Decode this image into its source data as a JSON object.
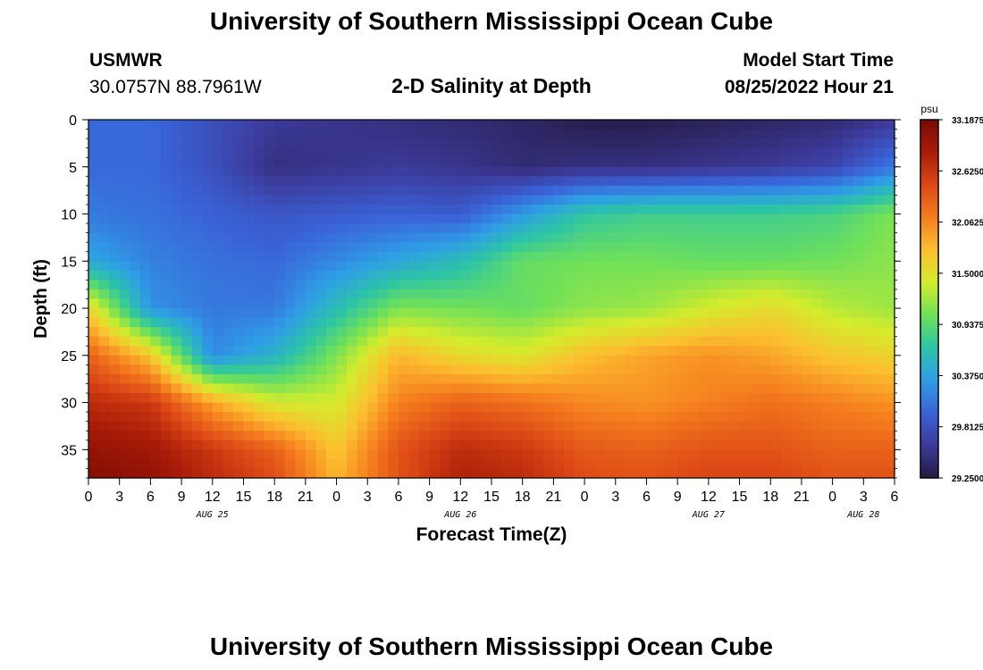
{
  "title": "University of Southern Mississippi Ocean Cube",
  "station": {
    "name": "USMWR",
    "coords": "30.0757N  88.7961W"
  },
  "subtitle": "2-D Salinity at Depth",
  "model_start": {
    "label": "Model Start Time",
    "value": "08/25/2022 Hour 21"
  },
  "chart_data": {
    "type": "heatmap",
    "title": "2-D Salinity at Depth",
    "xlabel": "Forecast Time(Z)",
    "ylabel": "Depth (ft)",
    "x_range_hours": [
      0,
      78
    ],
    "ylim": [
      0,
      38
    ],
    "x_ticks": [
      {
        "hours": 0,
        "label": "0"
      },
      {
        "hours": 3,
        "label": "3"
      },
      {
        "hours": 6,
        "label": "6"
      },
      {
        "hours": 9,
        "label": "9"
      },
      {
        "hours": 12,
        "label": "12"
      },
      {
        "hours": 15,
        "label": "15"
      },
      {
        "hours": 18,
        "label": "18"
      },
      {
        "hours": 21,
        "label": "21"
      },
      {
        "hours": 24,
        "label": "0"
      },
      {
        "hours": 27,
        "label": "3"
      },
      {
        "hours": 30,
        "label": "6"
      },
      {
        "hours": 33,
        "label": "9"
      },
      {
        "hours": 36,
        "label": "12"
      },
      {
        "hours": 39,
        "label": "15"
      },
      {
        "hours": 42,
        "label": "18"
      },
      {
        "hours": 45,
        "label": "21"
      },
      {
        "hours": 48,
        "label": "0"
      },
      {
        "hours": 51,
        "label": "3"
      },
      {
        "hours": 54,
        "label": "6"
      },
      {
        "hours": 57,
        "label": "9"
      },
      {
        "hours": 60,
        "label": "12"
      },
      {
        "hours": 63,
        "label": "15"
      },
      {
        "hours": 66,
        "label": "18"
      },
      {
        "hours": 69,
        "label": "21"
      },
      {
        "hours": 72,
        "label": "0"
      },
      {
        "hours": 75,
        "label": "3"
      },
      {
        "hours": 78,
        "label": "6"
      }
    ],
    "date_labels": [
      {
        "hours": 12,
        "label": "AUG 25"
      },
      {
        "hours": 36,
        "label": "AUG 26"
      },
      {
        "hours": 60,
        "label": "AUG 27"
      },
      {
        "hours": 75,
        "label": "AUG 28"
      }
    ],
    "y_ticks": [
      0,
      5,
      10,
      15,
      20,
      25,
      30,
      35
    ],
    "colorbar": {
      "unit": "psu",
      "min": 29.25,
      "max": 33.1875,
      "ticks": [
        {
          "value": 33.1875,
          "label": "33.1875"
        },
        {
          "value": 32.625,
          "label": "32.6250"
        },
        {
          "value": 32.0625,
          "label": "32.0625"
        },
        {
          "value": 31.5,
          "label": "31.5000"
        },
        {
          "value": 30.9375,
          "label": "30.9375"
        },
        {
          "value": 30.375,
          "label": "30.3750"
        },
        {
          "value": 29.8125,
          "label": "29.8125"
        },
        {
          "value": 29.25,
          "label": "29.2500"
        }
      ],
      "stops": [
        "#241a40",
        "#3c3a9a",
        "#3a63d8",
        "#2f9ee6",
        "#2cc4a6",
        "#6ee05a",
        "#d4ec2c",
        "#fcbf30",
        "#f57d1e",
        "#dc4816",
        "#aa1c08",
        "#7a0a04"
      ]
    },
    "depth_levels_ft": [
      0,
      5,
      10,
      15,
      20,
      25,
      30,
      35,
      38
    ],
    "time_keys_hours": [
      0,
      6,
      12,
      18,
      24,
      30,
      36,
      42,
      48,
      54,
      60,
      66,
      72,
      78
    ],
    "salinity_psu": [
      [
        30.0,
        30.0,
        29.8,
        29.6,
        29.55,
        29.5,
        29.45,
        29.4,
        29.3,
        29.3,
        29.35,
        29.4,
        29.45,
        29.6
      ],
      [
        30.0,
        30.0,
        29.8,
        29.5,
        29.55,
        29.6,
        29.55,
        29.45,
        29.5,
        29.5,
        29.55,
        29.6,
        29.7,
        30.1
      ],
      [
        30.1,
        30.05,
        29.95,
        29.85,
        29.9,
        29.95,
        29.9,
        30.3,
        30.7,
        30.8,
        30.8,
        30.8,
        30.85,
        31.1
      ],
      [
        30.4,
        30.15,
        30.05,
        30.0,
        30.2,
        30.4,
        30.6,
        31.0,
        31.05,
        31.05,
        31.0,
        31.0,
        31.05,
        31.15
      ],
      [
        31.6,
        30.25,
        30.1,
        30.1,
        30.6,
        31.1,
        31.05,
        31.0,
        31.15,
        31.2,
        31.4,
        31.55,
        31.3,
        31.2
      ],
      [
        32.3,
        31.7,
        30.2,
        30.5,
        31.1,
        31.8,
        31.55,
        31.45,
        31.75,
        31.9,
        32.0,
        31.9,
        31.7,
        31.6
      ],
      [
        32.7,
        32.6,
        31.9,
        31.4,
        31.4,
        32.1,
        32.3,
        32.2,
        32.05,
        32.0,
        32.1,
        32.2,
        32.1,
        32.0
      ],
      [
        33.0,
        32.9,
        32.6,
        32.3,
        31.7,
        32.4,
        32.7,
        32.6,
        32.35,
        32.3,
        32.4,
        32.4,
        32.3,
        32.3
      ],
      [
        33.1,
        33.0,
        32.7,
        32.45,
        31.8,
        32.4,
        32.8,
        32.7,
        32.45,
        32.4,
        32.5,
        32.5,
        32.4,
        32.4
      ]
    ]
  }
}
